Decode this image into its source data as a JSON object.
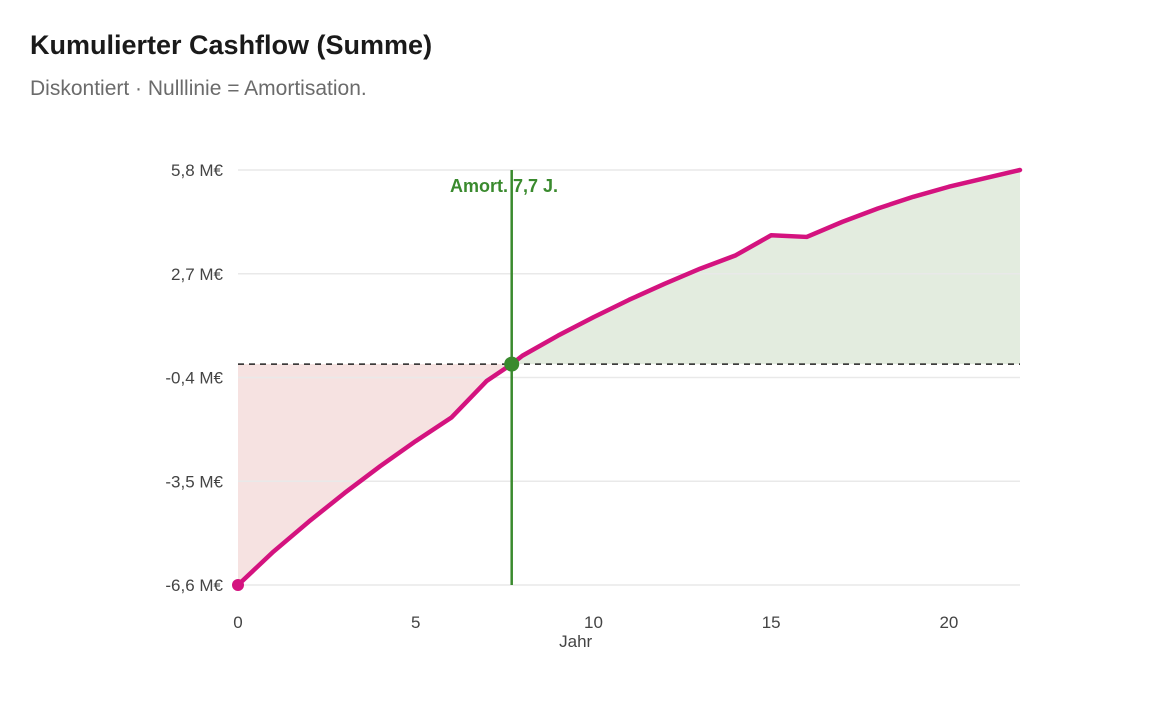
{
  "header": {
    "title": "Kumulierter Cashflow (Summe)",
    "subtitle": "Diskontiert · Nulllinie = Amortisation."
  },
  "colors": {
    "line": "#d4137f",
    "marker": "#3a8a2e",
    "positive_fill": "#e3ecdf",
    "negative_fill": "#f6e2e1",
    "grid": "#e9e9e9",
    "zero_line": "#222222"
  },
  "chart_data": {
    "type": "area",
    "xlabel": "Jahr",
    "ylabel": "",
    "xlim": [
      0,
      22
    ],
    "ylim": [
      -6.6,
      5.8
    ],
    "x_ticks": [
      0,
      5,
      10,
      15,
      20
    ],
    "y_ticks": [
      {
        "value": 5.8,
        "label": "5,8 M€"
      },
      {
        "value": 2.7,
        "label": "2,7 M€"
      },
      {
        "value": -0.4,
        "label": "-0,4 M€"
      },
      {
        "value": -3.5,
        "label": "-3,5 M€"
      },
      {
        "value": -6.6,
        "label": "-6,6 M€"
      }
    ],
    "grid": true,
    "reference_line": {
      "y": 0,
      "style": "dashed"
    },
    "payback": {
      "x": 7.7,
      "label": "Amort. 7,7 J."
    },
    "series": [
      {
        "x": [
          0,
          1,
          2,
          3,
          4,
          5,
          6,
          7,
          7.7,
          8,
          9,
          10,
          11,
          12,
          13,
          14,
          15,
          16,
          17,
          18,
          19,
          20,
          21,
          22
        ],
        "y": [
          -6.6,
          -5.6,
          -4.7,
          -3.85,
          -3.05,
          -2.3,
          -1.6,
          -0.5,
          0,
          0.25,
          0.85,
          1.4,
          1.92,
          2.4,
          2.85,
          3.25,
          3.85,
          3.8,
          4.25,
          4.65,
          5.0,
          5.3,
          5.55,
          5.8
        ]
      }
    ]
  }
}
